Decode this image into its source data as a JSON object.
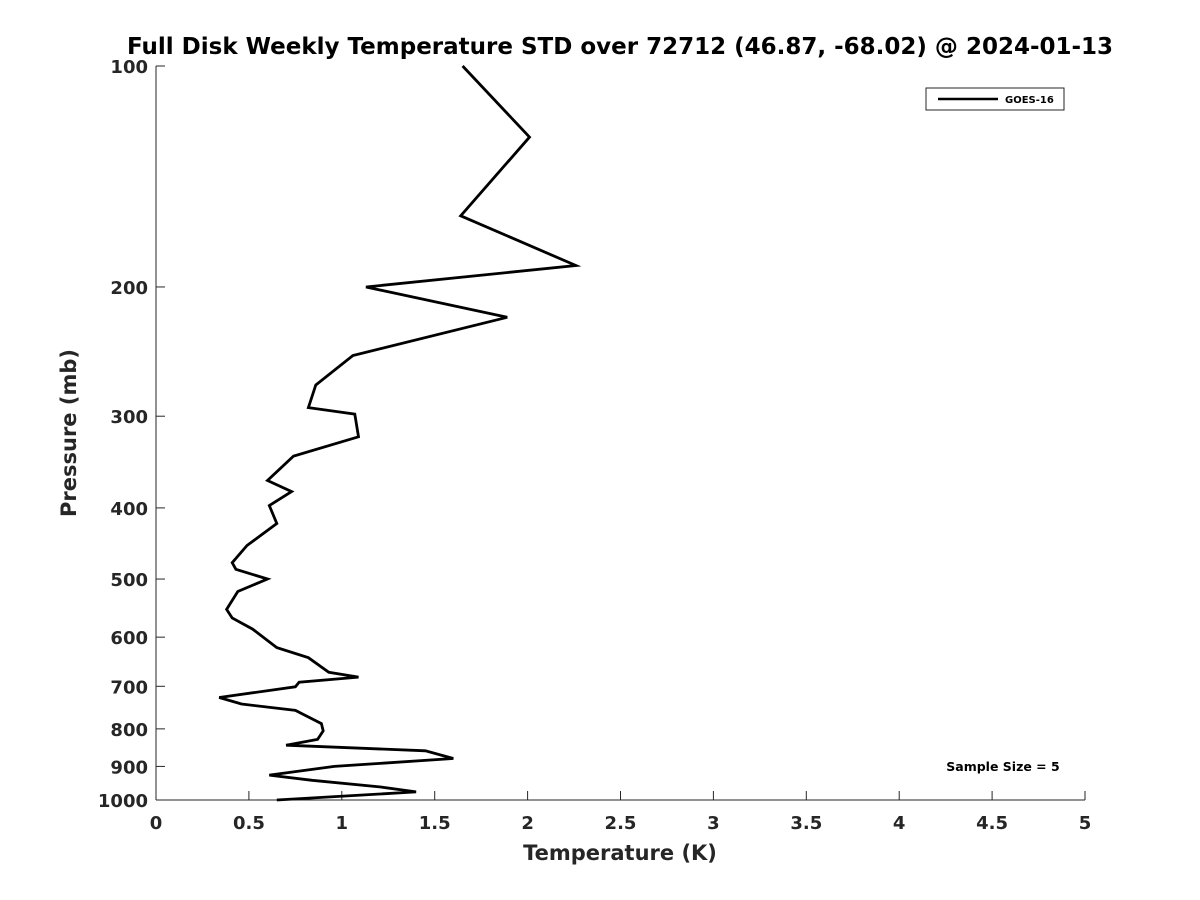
{
  "chart_data": {
    "type": "line",
    "title": "Full Disk Weekly Temperature STD over 72712 (46.87, -68.02) @ 2024-01-13",
    "xlabel": "Temperature (K)",
    "ylabel": "Pressure (mb)",
    "xlim": [
      0,
      5
    ],
    "ylim": [
      100,
      1000
    ],
    "y_scale": "log",
    "y_reversed": true,
    "x_ticks": [
      "0",
      "0.5",
      "1",
      "1.5",
      "2",
      "2.5",
      "3",
      "3.5",
      "4",
      "4.5",
      "5"
    ],
    "y_ticks": [
      "100",
      "200",
      "300",
      "400",
      "500",
      "600",
      "700",
      "800",
      "900",
      "1000"
    ],
    "grid": false,
    "legend_position": "top-right",
    "series": [
      {
        "name": "GOES-16",
        "color": "#000000",
        "points": [
          [
            1.65,
            100
          ],
          [
            2.01,
            125
          ],
          [
            1.64,
            160
          ],
          [
            2.26,
            187
          ],
          [
            1.13,
            200
          ],
          [
            1.89,
            220
          ],
          [
            1.06,
            248
          ],
          [
            0.86,
            272
          ],
          [
            0.82,
            292
          ],
          [
            1.07,
            298
          ],
          [
            1.09,
            320
          ],
          [
            0.74,
            340
          ],
          [
            0.6,
            367
          ],
          [
            0.73,
            380
          ],
          [
            0.61,
            397
          ],
          [
            0.65,
            420
          ],
          [
            0.49,
            450
          ],
          [
            0.41,
            475
          ],
          [
            0.43,
            485
          ],
          [
            0.6,
            500
          ],
          [
            0.44,
            520
          ],
          [
            0.38,
            550
          ],
          [
            0.41,
            565
          ],
          [
            0.52,
            585
          ],
          [
            0.65,
            620
          ],
          [
            0.82,
            640
          ],
          [
            0.93,
            670
          ],
          [
            1.09,
            680
          ],
          [
            0.77,
            691
          ],
          [
            0.75,
            701
          ],
          [
            0.34,
            725
          ],
          [
            0.46,
            740
          ],
          [
            0.75,
            755
          ],
          [
            0.89,
            787
          ],
          [
            0.9,
            805
          ],
          [
            0.87,
            827
          ],
          [
            0.7,
            842
          ],
          [
            1.45,
            857
          ],
          [
            1.6,
            878
          ],
          [
            0.96,
            900
          ],
          [
            0.61,
            925
          ],
          [
            0.84,
            940
          ],
          [
            1.21,
            960
          ],
          [
            1.4,
            975
          ],
          [
            0.65,
            1000
          ]
        ]
      }
    ],
    "annotation": "Sample Size = 5"
  }
}
